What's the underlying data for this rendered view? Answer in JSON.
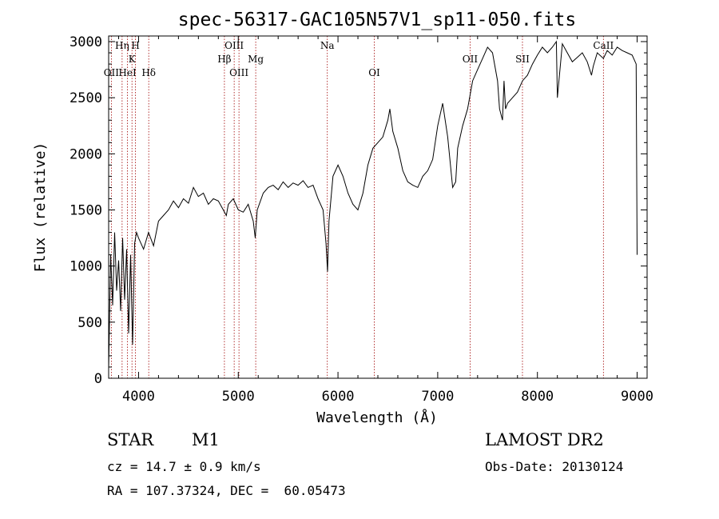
{
  "title": "spec-56317-GAC105N57V1_sp11-050.fits",
  "info": {
    "object_class": "STAR",
    "subclass": "M1",
    "survey": "LAMOST DR2",
    "cz": "cz = 14.7 ± 0.9 km/s",
    "obs_date": "Obs-Date: 20130124",
    "coords": "RA = 107.37324, DEC =  60.05473"
  },
  "chart_data": {
    "type": "line",
    "xlabel": "Wavelength (Å)",
    "ylabel": "Flux (relative)",
    "xlim": [
      3700,
      9100
    ],
    "ylim": [
      0,
      3050
    ],
    "xticks": [
      4000,
      5000,
      6000,
      7000,
      8000,
      9000
    ],
    "yticks": [
      0,
      500,
      1000,
      1500,
      2000,
      2500,
      3000
    ],
    "spectral_lines": [
      {
        "label": "OII",
        "x": 3727,
        "row": 3
      },
      {
        "label": "Hη",
        "x": 3835,
        "row": 1
      },
      {
        "label": "HeI",
        "x": 3889,
        "row": 3
      },
      {
        "label": "K",
        "x": 3934,
        "row": 2
      },
      {
        "label": "H",
        "x": 3969,
        "row": 1
      },
      {
        "label": "Hδ",
        "x": 4102,
        "row": 3
      },
      {
        "label": "Hβ",
        "x": 4861,
        "row": 2
      },
      {
        "label": "OIII",
        "x": 4959,
        "row": 1
      },
      {
        "label": "OIII",
        "x": 5007,
        "row": 3
      },
      {
        "label": "Mg",
        "x": 5175,
        "row": 2
      },
      {
        "label": "Na",
        "x": 5893,
        "row": 1
      },
      {
        "label": "OI",
        "x": 6364,
        "row": 3
      },
      {
        "label": "OII",
        "x": 7325,
        "row": 2
      },
      {
        "label": "SII",
        "x": 7850,
        "row": 2
      },
      {
        "label": "CaII",
        "x": 8662,
        "row": 1
      }
    ],
    "series": [
      {
        "x": [
          3700,
          3720,
          3740,
          3760,
          3780,
          3800,
          3820,
          3840,
          3860,
          3880,
          3900,
          3920,
          3940,
          3960,
          3980,
          4000,
          4050,
          4100,
          4150,
          4200,
          4250,
          4300,
          4350,
          4400,
          4450,
          4500,
          4550,
          4600,
          4650,
          4700,
          4750,
          4800,
          4850,
          4880,
          4900,
          4950,
          5000,
          5050,
          5100,
          5150,
          5170,
          5190,
          5250,
          5300,
          5350,
          5400,
          5450,
          5500,
          5550,
          5600,
          5650,
          5700,
          5750,
          5800,
          5850,
          5880,
          5895,
          5910,
          5950,
          6000,
          6050,
          6100,
          6150,
          6200,
          6250,
          6300,
          6350,
          6400,
          6450,
          6500,
          6520,
          6550,
          6600,
          6650,
          6700,
          6750,
          6800,
          6850,
          6900,
          6950,
          7000,
          7050,
          7100,
          7150,
          7180,
          7200,
          7250,
          7300,
          7350,
          7400,
          7450,
          7500,
          7550,
          7600,
          7620,
          7650,
          7665,
          7680,
          7700,
          7750,
          7800,
          7850,
          7900,
          7950,
          8000,
          8050,
          8100,
          8150,
          8190,
          8200,
          8250,
          8300,
          8350,
          8400,
          8450,
          8500,
          8542,
          8560,
          8600,
          8662,
          8700,
          8750,
          8800,
          8850,
          8900,
          8950,
          8990,
          9000
        ],
        "y": [
          80,
          1100,
          650,
          1300,
          780,
          1050,
          600,
          1250,
          700,
          1150,
          400,
          1100,
          300,
          1200,
          1300,
          1250,
          1150,
          1300,
          1180,
          1400,
          1450,
          1500,
          1580,
          1520,
          1600,
          1560,
          1700,
          1620,
          1650,
          1550,
          1600,
          1580,
          1500,
          1450,
          1550,
          1600,
          1500,
          1480,
          1550,
          1400,
          1250,
          1500,
          1650,
          1700,
          1720,
          1680,
          1750,
          1700,
          1740,
          1720,
          1760,
          1700,
          1720,
          1600,
          1500,
          1200,
          950,
          1400,
          1800,
          1900,
          1800,
          1650,
          1550,
          1500,
          1650,
          1900,
          2050,
          2100,
          2150,
          2300,
          2400,
          2200,
          2050,
          1850,
          1750,
          1720,
          1700,
          1800,
          1850,
          1950,
          2250,
          2450,
          2150,
          1700,
          1750,
          2050,
          2250,
          2400,
          2650,
          2750,
          2850,
          2950,
          2900,
          2650,
          2400,
          2300,
          2650,
          2400,
          2450,
          2500,
          2550,
          2650,
          2700,
          2800,
          2880,
          2950,
          2900,
          2950,
          3000,
          2500,
          2980,
          2900,
          2820,
          2860,
          2900,
          2820,
          2700,
          2780,
          2900,
          2850,
          2920,
          2880,
          2950,
          2920,
          2900,
          2880,
          2800,
          1100
        ]
      }
    ]
  }
}
